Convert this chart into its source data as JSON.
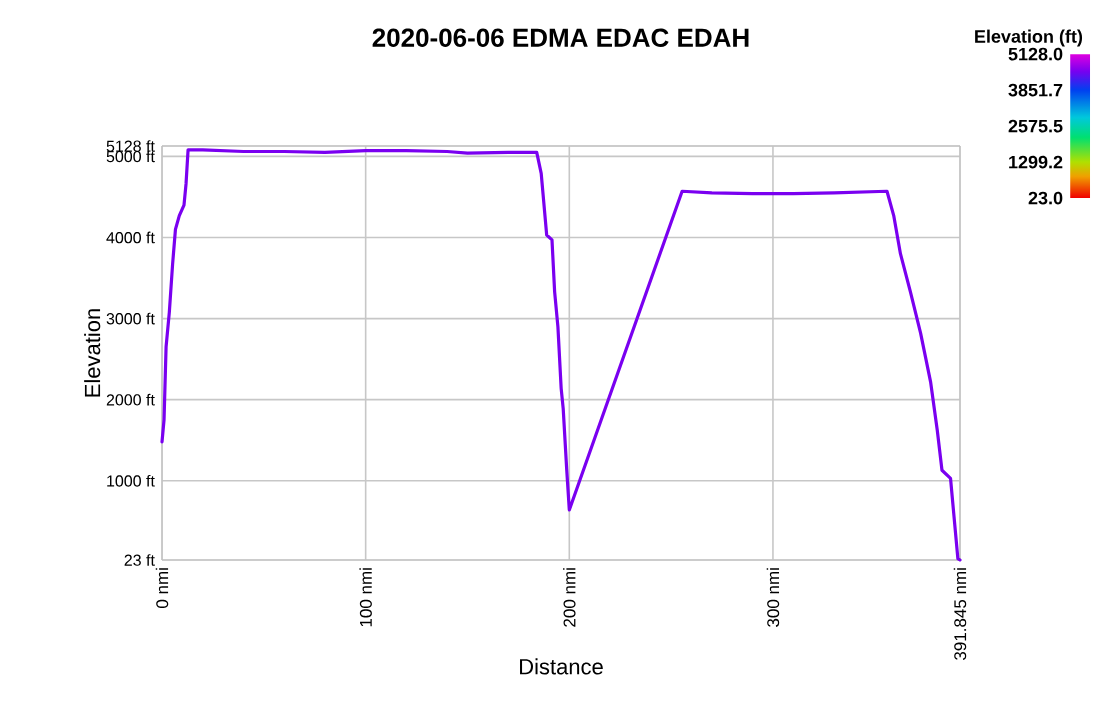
{
  "chart_data": {
    "type": "line",
    "title": "2020-06-06 EDMA EDAC EDAH",
    "xlabel": "Distance",
    "ylabel": "Elevation",
    "legend_title": "Elevation (ft)",
    "x": [
      0,
      1,
      2,
      3.6,
      5.2,
      6.6,
      8.5,
      10.8,
      11.8,
      12.8,
      20,
      40,
      60,
      80,
      100,
      120,
      140,
      150,
      170,
      184,
      186.2,
      188.9,
      191.5,
      192.8,
      194.4,
      196,
      197,
      198.7,
      200,
      255.4,
      270,
      290,
      310,
      330,
      356,
      359.3,
      362.6,
      367.5,
      372.5,
      377.4,
      380.7,
      383,
      387.2,
      388.9,
      390.8,
      391.845
    ],
    "values": [
      1480,
      1750,
      2650,
      3080,
      3670,
      4100,
      4270,
      4400,
      4660,
      5080,
      5080,
      5060,
      5060,
      5050,
      5070,
      5070,
      5060,
      5040,
      5050,
      5050,
      4790,
      4030,
      3970,
      3330,
      2900,
      2140,
      1890,
      1150,
      640,
      4570,
      4550,
      4540,
      4540,
      4550,
      4570,
      4270,
      3800,
      3330,
      2820,
      2220,
      1620,
      1130,
      1030,
      560,
      40,
      23
    ],
    "color": "#7a00f0",
    "xlim": [
      0,
      391.845
    ],
    "ylim": [
      23,
      5128
    ],
    "xticks": [
      {
        "value": 0,
        "label": "0 nmi"
      },
      {
        "value": 100,
        "label": "100 nmi"
      },
      {
        "value": 200,
        "label": "200 nmi"
      },
      {
        "value": 300,
        "label": "300 nmi"
      },
      {
        "value": 391.845,
        "label": "391.845 nmi"
      }
    ],
    "yticks": [
      {
        "value": 23,
        "label": "23 ft"
      },
      {
        "value": 1000,
        "label": "1000 ft"
      },
      {
        "value": 2000,
        "label": "2000 ft"
      },
      {
        "value": 3000,
        "label": "3000 ft"
      },
      {
        "value": 4000,
        "label": "4000 ft"
      },
      {
        "value": 5000,
        "label": "5000 ft"
      },
      {
        "value": 5128,
        "label": "5128 ft"
      }
    ],
    "clim": [
      23,
      5128
    ],
    "cticks": [
      {
        "value": 23.0,
        "label": "23.0"
      },
      {
        "value": 1299.2,
        "label": "1299.2"
      },
      {
        "value": 2575.5,
        "label": "2575.5"
      },
      {
        "value": 3851.7,
        "label": "3851.7"
      },
      {
        "value": 5128.0,
        "label": "5128.0"
      }
    ],
    "grid": true
  }
}
